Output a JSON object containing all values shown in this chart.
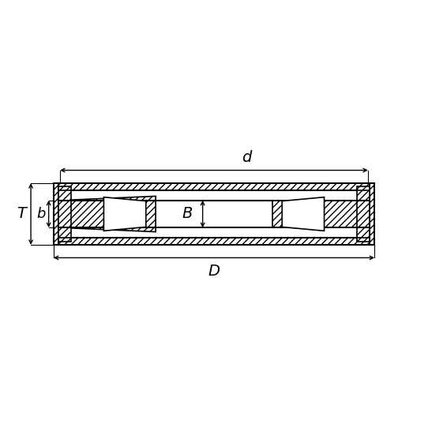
{
  "bg_color": "#ffffff",
  "line_color": "#000000",
  "hatch_color": "#000000",
  "dashed_color": "#aaaaaa",
  "fig_width": 5.42,
  "fig_height": 5.42,
  "labels": {
    "d": "d",
    "D": "D",
    "B": "B",
    "T": "T",
    "b": "b"
  }
}
